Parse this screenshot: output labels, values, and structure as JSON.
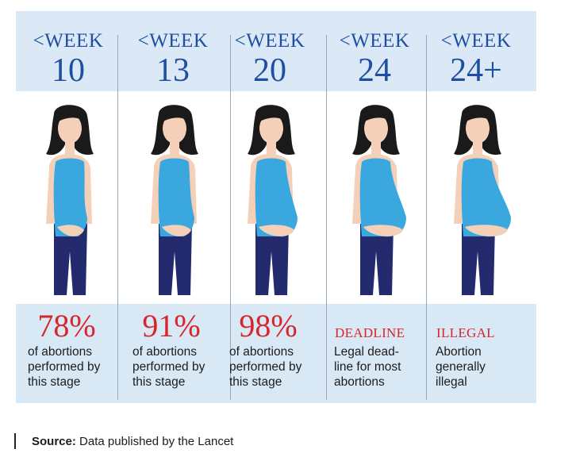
{
  "chart_data": {
    "type": "table",
    "columns": [
      {
        "week_label": "<WEEK",
        "week_number": "10",
        "stat": "78%",
        "desc_lines": [
          "of abortions",
          "performed by",
          "this stage"
        ],
        "belly_size": 0
      },
      {
        "week_label": "<WEEK",
        "week_number": "13",
        "stat": "91%",
        "desc_lines": [
          "of abortions",
          "performed by",
          "this stage"
        ],
        "belly_size": 0.15
      },
      {
        "week_label": "<WEEK",
        "week_number": "20",
        "stat": "98%",
        "desc_lines": [
          "of abortions",
          "performed by",
          "this stage"
        ],
        "belly_size": 0.55
      },
      {
        "week_label": "<WEEK",
        "week_number": "24",
        "heading": "DEADLINE",
        "desc_lines": [
          "Legal dead-",
          "line for most",
          "abortions"
        ],
        "belly_size": 0.8
      },
      {
        "week_label": "<WEEK",
        "week_number": "24+",
        "heading": "ILLEGAL",
        "desc_lines": [
          "Abortion",
          "generally",
          "illegal"
        ],
        "belly_size": 1.0
      }
    ]
  },
  "source": {
    "label": "Source:",
    "text": "Data published by the Lancet"
  },
  "colors": {
    "header_text": "#1f4fa3",
    "highlight_red": "#d7262b",
    "top_color": "#3aa8de",
    "pants_color": "#232a6e",
    "hair_color": "#1a1a1a",
    "skin_color": "#f5d0b8",
    "panel_bg": "#d9e8f5"
  }
}
